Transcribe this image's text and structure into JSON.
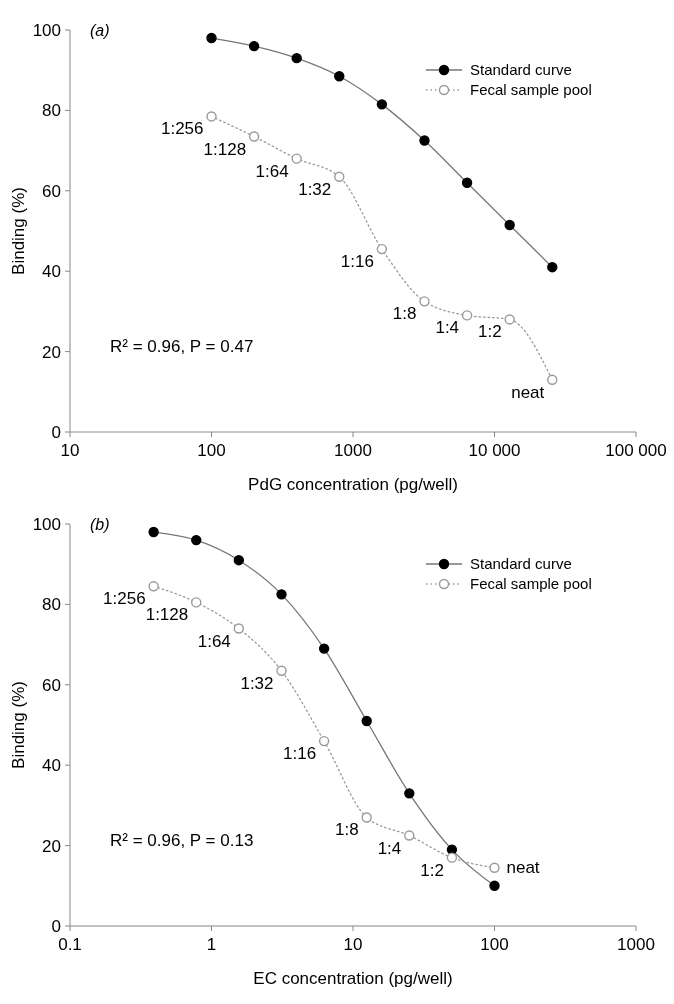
{
  "chart_data": [
    {
      "type": "line",
      "title": "(a)",
      "xlabel": "PdG concentration (pg/well)",
      "ylabel": "Binding (%)",
      "log": "x",
      "xlim": [
        10,
        100000
      ],
      "xticks": [
        10,
        100,
        1000,
        {
          "value": 10000,
          "label": "10 000"
        },
        {
          "value": 100000,
          "label": "100 000"
        }
      ],
      "ylim": [
        0,
        100
      ],
      "yticks": [
        0,
        20,
        40,
        60,
        80,
        100
      ],
      "grid": false,
      "legend": "top right",
      "marker": "circle",
      "x": [
        100,
        200,
        400,
        800,
        1600,
        3200,
        6400,
        12800,
        25600
      ],
      "series": [
        {
          "name": "Standard curve",
          "color": "#000000",
          "line_style": "solid",
          "values": [
            98,
            96,
            93,
            88.5,
            81.5,
            72.5,
            62,
            51.5,
            41
          ]
        },
        {
          "name": "Fecal sample pool",
          "color": "#9a9a9a",
          "line_style": "dotted",
          "values": [
            78.5,
            73.5,
            68,
            63.5,
            45.5,
            32.5,
            29,
            28,
            13
          ]
        }
      ],
      "annotations": [
        {
          "text": "1:256",
          "x": 100,
          "y": 78.5
        },
        {
          "text": "1:128",
          "x": 200,
          "y": 73.5
        },
        {
          "text": "1:64",
          "x": 400,
          "y": 68
        },
        {
          "text": "1:32",
          "x": 800,
          "y": 63.5
        },
        {
          "text": "1:16",
          "x": 1600,
          "y": 45.5
        },
        {
          "text": "1:8",
          "x": 3200,
          "y": 32.5
        },
        {
          "text": "1:4",
          "x": 6400,
          "y": 29
        },
        {
          "text": "1:2",
          "x": 12800,
          "y": 28
        },
        {
          "text": "neat",
          "x": 25600,
          "y": 13
        },
        "R² = 0.96, P = 0.47"
      ]
    },
    {
      "type": "line",
      "title": "(b)",
      "xlabel": "EC concentration (pg/well)",
      "ylabel": "Binding (%)",
      "log": "x",
      "xlim": [
        0.1,
        1000
      ],
      "xticks": [
        0.1,
        1,
        10,
        100,
        1000
      ],
      "ylim": [
        0,
        100
      ],
      "yticks": [
        0,
        20,
        40,
        60,
        80,
        100
      ],
      "grid": false,
      "legend": "top right",
      "marker": "circle",
      "x": [
        0.39,
        0.78,
        1.56,
        3.125,
        6.25,
        12.5,
        25,
        50,
        100
      ],
      "series": [
        {
          "name": "Standard curve",
          "color": "#000000",
          "line_style": "solid",
          "values": [
            98,
            96,
            91,
            82.5,
            69,
            51,
            33,
            19,
            10
          ]
        },
        {
          "name": "Fecal sample pool",
          "color": "#9a9a9a",
          "line_style": "dotted",
          "values": [
            84.5,
            80.5,
            74,
            63.5,
            46,
            27,
            22.5,
            17,
            14.5
          ]
        }
      ],
      "annotations": [
        {
          "text": "1:256",
          "x": 0.39,
          "y": 84.5
        },
        {
          "text": "1:128",
          "x": 0.78,
          "y": 80.5
        },
        {
          "text": "1:64",
          "x": 1.56,
          "y": 74
        },
        {
          "text": "1:32",
          "x": 3.125,
          "y": 63.5
        },
        {
          "text": "1:16",
          "x": 6.25,
          "y": 46
        },
        {
          "text": "1:8",
          "x": 12.5,
          "y": 27
        },
        {
          "text": "1:4",
          "x": 25,
          "y": 22.5
        },
        {
          "text": "1:2",
          "x": 50,
          "y": 17
        },
        {
          "text": "neat",
          "x": 100,
          "y": 14.5
        },
        "R² = 0.96, P = 0.13"
      ]
    }
  ]
}
